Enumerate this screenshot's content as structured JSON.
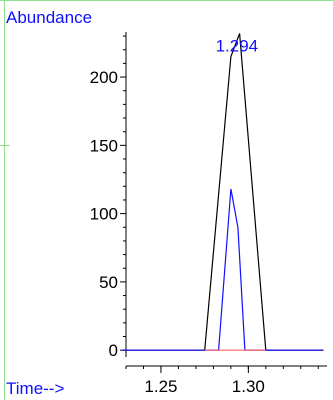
{
  "chart_data": {
    "type": "line",
    "ylabel": "Abundance",
    "xlabel": "Time-->",
    "xlim": [
      1.23,
      1.345
    ],
    "ylim": [
      -5,
      233
    ],
    "x_ticks": [
      {
        "value": 1.25,
        "label": "1.25"
      },
      {
        "value": 1.3,
        "label": "1.30"
      }
    ],
    "y_ticks": [
      {
        "value": 0,
        "label": "0"
      },
      {
        "value": 50,
        "label": "50"
      },
      {
        "value": 100,
        "label": "100"
      },
      {
        "value": 150,
        "label": "150"
      },
      {
        "value": 200,
        "label": "200"
      }
    ],
    "series": [
      {
        "color": "#000000",
        "points": [
          [
            1.228,
            0
          ],
          [
            1.275,
            0
          ],
          [
            1.29,
            215
          ],
          [
            1.295,
            232
          ],
          [
            1.31,
            0
          ],
          [
            1.343,
            0
          ]
        ]
      },
      {
        "color": "#1010ff",
        "points": [
          [
            1.228,
            0
          ],
          [
            1.283,
            0
          ],
          [
            1.29,
            118
          ],
          [
            1.294,
            90
          ],
          [
            1.298,
            0
          ],
          [
            1.343,
            0
          ]
        ]
      },
      {
        "color": "#ff6060",
        "points": [
          [
            1.275,
            0
          ],
          [
            1.31,
            0
          ]
        ]
      }
    ],
    "annotations": [
      {
        "text": "1.294",
        "x": 1.294,
        "y": 232,
        "color": "#1010ff"
      }
    ],
    "grid": false
  }
}
